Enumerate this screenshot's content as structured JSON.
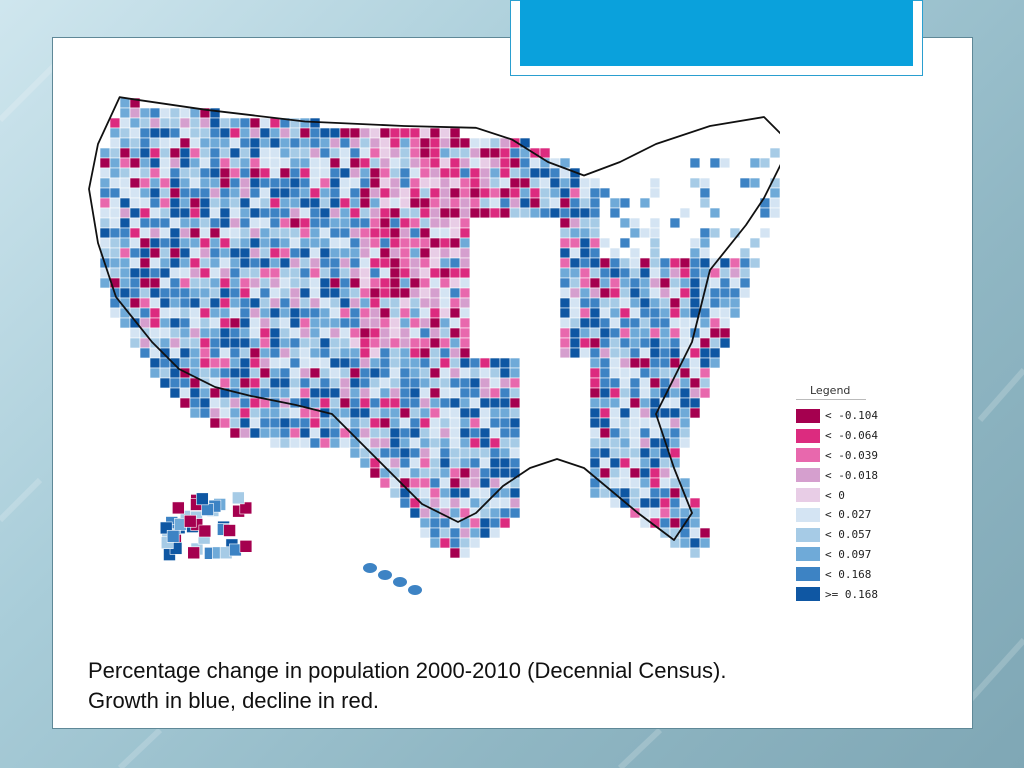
{
  "legend": {
    "title": "Legend",
    "items": [
      {
        "label": "< -0.104",
        "color": "#a5004f"
      },
      {
        "label": "< -0.064",
        "color": "#dc2b7f"
      },
      {
        "label": "< -0.039",
        "color": "#e868ad"
      },
      {
        "label": "< -0.018",
        "color": "#d59fce"
      },
      {
        "label": "< 0",
        "color": "#e8cde6"
      },
      {
        "label": "< 0.027",
        "color": "#d4e4f3"
      },
      {
        "label": "< 0.057",
        "color": "#a6cbe6"
      },
      {
        "label": "< 0.097",
        "color": "#6faad8"
      },
      {
        "label": "< 0.168",
        "color": "#3d83c4"
      },
      {
        "label": ">= 0.168",
        "color": "#0f57a3"
      }
    ]
  },
  "caption": {
    "line1": "Percentage change in population 2000-2010 (Decennial Census).",
    "line2": "Growth in blue, decline in red."
  },
  "colors": {
    "title_bar": "#0aa1dc",
    "no_data_fill": "#ffffff",
    "state_border": "#111111"
  },
  "icons": {
    "map": "us-county-choropleth-icon"
  }
}
